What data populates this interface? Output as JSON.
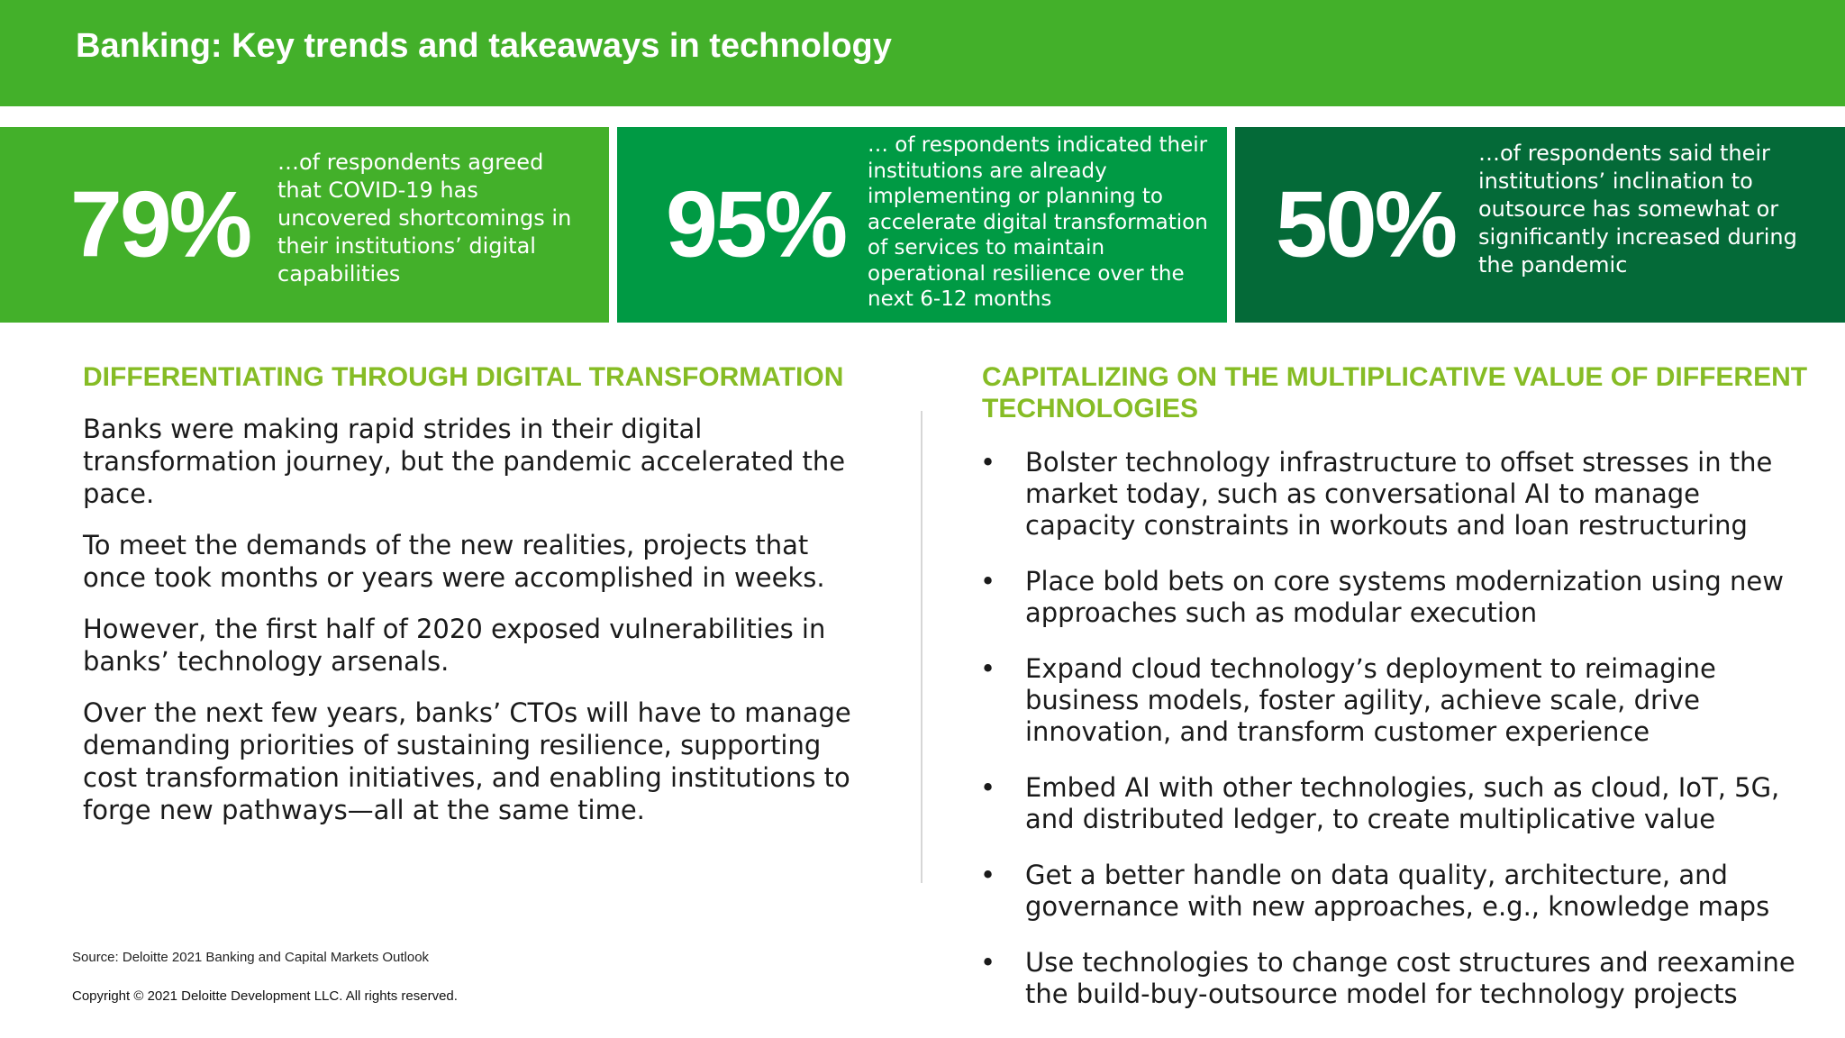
{
  "header": {
    "title": "Banking: Key trends and takeaways in technology"
  },
  "stats": [
    {
      "value": "79%",
      "text": "…of respondents agreed that COVID-19 has uncovered shortcomings in their institutions’ digital capabilities"
    },
    {
      "value": "95%",
      "text": "… of respondents indicated their institutions are already implementing or planning to accelerate digital transformation of services to maintain operational resilience over the next 6-12 months"
    },
    {
      "value": "50%",
      "text": "…of respondents said their institutions’ inclination to outsource has somewhat or significantly increased during the pandemic"
    }
  ],
  "left": {
    "heading": "DIFFERENTIATING THROUGH DIGITAL TRANSFORMATION",
    "paragraphs": [
      "Banks were making rapid strides in their digital transformation journey, but the pandemic accelerated the pace.",
      "To meet the demands of the new realities, projects that once took months or years were accomplished in weeks.",
      "However, the first half of 2020 exposed vulnerabilities in banks’ technology arsenals.",
      "Over the next few years, banks’ CTOs will have to manage demanding priorities of sustaining resilience, supporting cost transformation initiatives, and enabling institutions to forge new pathways—all at the same time."
    ]
  },
  "right": {
    "heading": "CAPITALIZING ON THE MULTIPLICATIVE VALUE OF DIFFERENT TECHNOLOGIES",
    "bullet_char": "•",
    "bullets": [
      "Bolster technology infrastructure to offset stresses in the market today, such as conversational AI to manage capacity constraints in workouts and loan restructuring",
      "Place bold bets on core systems modernization using new approaches such as modular execution",
      "Expand cloud technology’s deployment to reimagine business models, foster agility, achieve scale, drive innovation, and transform customer experience",
      "Embed AI with other technologies, such as cloud, IoT, 5G, and distributed ledger, to create multiplicative value",
      "Get a better handle on data quality, architecture, and governance with new approaches, e.g., knowledge maps",
      "Use technologies to change cost structures and reexamine the build-buy-outsource model for technology projects"
    ]
  },
  "footer": {
    "source": "Source: Deloitte 2021 Banking and Capital Markets Outlook",
    "copyright": "Copyright © 2021 Deloitte Development LLC. All rights reserved."
  },
  "colors": {
    "header_green": "#43b02a",
    "stat_green_1": "#43b02a",
    "stat_green_2": "#009a44",
    "stat_green_3": "#046a38",
    "heading_green": "#86bc25"
  }
}
